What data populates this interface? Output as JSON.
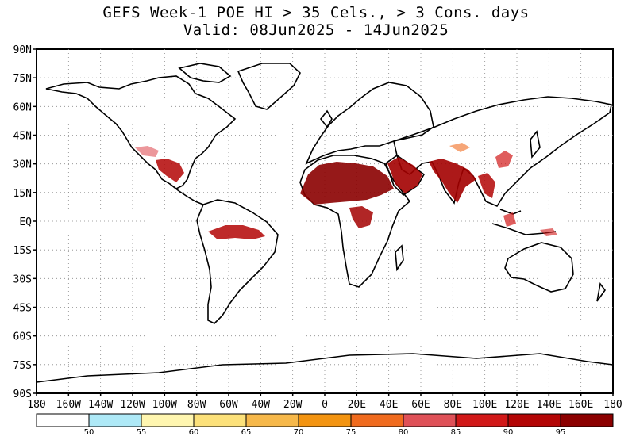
{
  "header": {
    "title_line1": "GEFS Week-1 POE HI > 35 Cels., > 3 Cons. days",
    "title_line2": "Valid: 08Jun2025 - 14Jun2025"
  },
  "axes": {
    "lat_labels": [
      "90N",
      "75N",
      "60N",
      "45N",
      "30N",
      "15N",
      "EQ",
      "15S",
      "30S",
      "45S",
      "60S",
      "75S",
      "90S"
    ],
    "lon_labels": [
      "180",
      "160W",
      "140W",
      "120W",
      "100W",
      "80W",
      "60W",
      "40W",
      "20W",
      "0",
      "20E",
      "40E",
      "60E",
      "80E",
      "100E",
      "120E",
      "140E",
      "160E",
      "180"
    ]
  },
  "colorbar": {
    "labels": [
      "50",
      "55",
      "60",
      "65",
      "70",
      "75",
      "80",
      "85",
      "90",
      "95"
    ],
    "colors": [
      "#ffffff",
      "#aee9f7",
      "#fff6b0",
      "#fce17a",
      "#f6b84a",
      "#f39411",
      "#f06b1e",
      "#df5158",
      "#d11818",
      "#b30505",
      "#8b0000"
    ]
  },
  "map": {
    "land_fill": "#ffffff",
    "coast_color": "#000000",
    "grid": "dotted"
  }
}
